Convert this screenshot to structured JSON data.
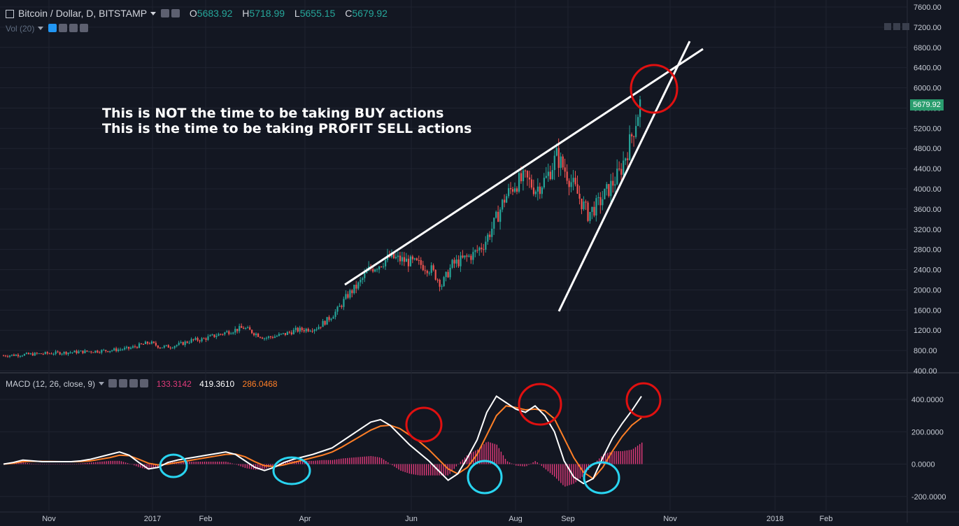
{
  "header": {
    "symbol": "Bitcoin / Dollar, D, BITSTAMP",
    "o_label": "O",
    "o_value": "5683.92",
    "h_label": "H",
    "h_value": "5718.99",
    "l_label": "L",
    "l_value": "5655.15",
    "c_label": "C",
    "c_value": "5679.92",
    "vol_label": "Vol (20)"
  },
  "annotation": {
    "line1": "This is NOT the time to be taking BUY actions",
    "line2": "This is the time to be taking PROFIT SELL actions"
  },
  "last_price_tag": "5679.92",
  "macd_header": {
    "label": "MACD (12, 26, close, 9)",
    "histogram_value": "133.3142",
    "macd_value": "419.3610",
    "signal_value": "286.0468"
  },
  "colors": {
    "background": "#131722",
    "up_candle": "#26a69a",
    "down_candle": "#ef5350",
    "macd_line": "#ffffff",
    "signal_line": "#ff7f27",
    "histogram": "#e03a7a",
    "red_circle": "#e01010",
    "cyan_circle": "#29d4f0"
  },
  "chart_data": [
    {
      "type": "line",
      "title": "Bitcoin / Dollar, D, BITSTAMP",
      "y_ticks": [
        "7600.00",
        "7200.00",
        "6800.00",
        "6400.00",
        "6000.00",
        "5600.00",
        "5200.00",
        "4800.00",
        "4400.00",
        "4000.00",
        "3600.00",
        "3200.00",
        "2800.00",
        "2400.00",
        "2000.00",
        "1600.00",
        "1200.00",
        "800.00",
        "400.00"
      ],
      "x_ticks": [
        "Nov",
        "2017",
        "Feb",
        "Apr",
        "Jun",
        "Aug",
        "Sep",
        "Nov",
        "2018",
        "Feb"
      ],
      "ylim": [
        400,
        7600
      ],
      "series": [
        {
          "x": [
            0,
            30,
            60,
            90,
            120,
            150,
            180,
            210,
            225,
            240,
            255,
            270,
            285,
            300,
            315,
            330,
            345,
            360,
            375,
            390,
            405,
            420,
            435,
            450,
            465,
            480,
            495,
            510,
            525,
            540,
            555,
            570,
            585,
            600,
            615,
            630,
            645,
            660,
            675,
            690,
            705,
            720,
            735,
            750,
            765,
            780,
            795,
            810,
            825,
            840,
            855,
            870,
            885,
            900,
            915
          ],
          "values": [
            700,
            720,
            740,
            760,
            780,
            800,
            840,
            960,
            870,
            880,
            930,
            1000,
            1020,
            1080,
            1140,
            1200,
            1250,
            1150,
            1050,
            1080,
            1130,
            1200,
            1220,
            1250,
            1400,
            1600,
            1900,
            2100,
            2400,
            2500,
            2650,
            2600,
            2550,
            2500,
            2400,
            2100,
            2500,
            2600,
            2700,
            2900,
            3300,
            3800,
            4100,
            4200,
            4000,
            4200,
            4650,
            4300,
            3900,
            3500,
            3700,
            4000,
            4300,
            4900,
            5680
          ]
        }
      ],
      "trendlines": [
        {
          "from": [
            2100,
            "May"
          ],
          "to": [
            6800,
            "Oct"
          ]
        },
        {
          "from": [
            1600,
            "Sep"
          ],
          "to": [
            7000,
            "Oct"
          ]
        }
      ]
    },
    {
      "type": "line",
      "title": "MACD (12, 26, close, 9)",
      "y_ticks": [
        "400.0000",
        "200.0000",
        "0.0000",
        "-200.0000"
      ],
      "ylim": [
        -250,
        500
      ],
      "series": [
        {
          "name": "MACD",
          "values": [
            0,
            10,
            25,
            20,
            15,
            15,
            15,
            15,
            20,
            30,
            45,
            60,
            75,
            55,
            10,
            -30,
            -20,
            10,
            25,
            35,
            45,
            55,
            65,
            75,
            60,
            20,
            -20,
            -40,
            -20,
            10,
            30,
            45,
            60,
            80,
            100,
            140,
            180,
            220,
            260,
            275,
            240,
            180,
            120,
            70,
            20,
            -40,
            -100,
            -60,
            40,
            150,
            320,
            420,
            380,
            340,
            320,
            360,
            300,
            200,
            20,
            -80,
            -120,
            -90,
            40,
            160,
            250,
            330,
            419
          ]
        },
        {
          "name": "Signal",
          "values": [
            0,
            5,
            15,
            18,
            17,
            16,
            15,
            15,
            16,
            20,
            30,
            40,
            55,
            52,
            30,
            5,
            -5,
            0,
            10,
            20,
            30,
            40,
            50,
            60,
            62,
            45,
            15,
            -10,
            -15,
            -5,
            10,
            25,
            40,
            55,
            75,
            105,
            140,
            175,
            210,
            235,
            240,
            220,
            180,
            140,
            90,
            30,
            -30,
            -60,
            -20,
            60,
            180,
            300,
            360,
            350,
            335,
            340,
            330,
            280,
            160,
            40,
            -50,
            -90,
            -20,
            80,
            170,
            240,
            286
          ]
        },
        {
          "name": "Histogram",
          "values": [
            0,
            5,
            10,
            2,
            -2,
            -1,
            0,
            0,
            4,
            10,
            15,
            20,
            20,
            3,
            -20,
            -35,
            -15,
            10,
            15,
            15,
            15,
            15,
            15,
            15,
            -2,
            -25,
            -35,
            -30,
            -5,
            15,
            20,
            20,
            20,
            25,
            25,
            35,
            40,
            45,
            50,
            40,
            0,
            -40,
            -60,
            -70,
            -70,
            -70,
            -70,
            0,
            60,
            90,
            140,
            120,
            20,
            -10,
            -15,
            20,
            -30,
            -80,
            -140,
            -120,
            -70,
            0,
            60,
            80,
            80,
            90,
            133
          ]
        }
      ]
    }
  ]
}
